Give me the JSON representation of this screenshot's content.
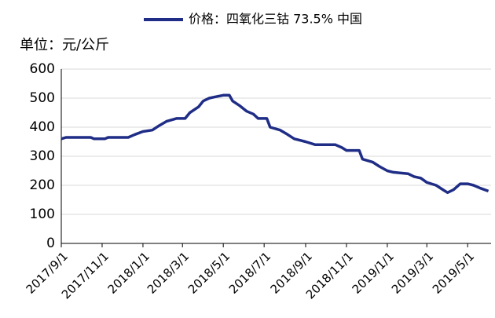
{
  "chart_data": {
    "type": "line",
    "legend_label": "价格：四氧化三钴 73.5% 中国",
    "unit_label": "单位：元/公斤",
    "grid": true,
    "ylim": [
      0,
      600
    ],
    "yticks": [
      0,
      100,
      200,
      300,
      400,
      500,
      600
    ],
    "xlim": [
      "2017-09-01",
      "2019-06-05"
    ],
    "xticks": [
      {
        "value": "2017-09-01",
        "label": "2017/9/1"
      },
      {
        "value": "2017-11-01",
        "label": "2017/11/1"
      },
      {
        "value": "2018-01-01",
        "label": "2018/1/1"
      },
      {
        "value": "2018-03-01",
        "label": "2018/3/1"
      },
      {
        "value": "2018-05-01",
        "label": "2018/5/1"
      },
      {
        "value": "2018-07-01",
        "label": "2018/7/1"
      },
      {
        "value": "2018-09-01",
        "label": "2018/9/1"
      },
      {
        "value": "2018-11-01",
        "label": "2018/11/1"
      },
      {
        "value": "2019-01-01",
        "label": "2019/1/1"
      },
      {
        "value": "2019-03-01",
        "label": "2019/3/1"
      },
      {
        "value": "2019-05-01",
        "label": "2019/5/1"
      }
    ],
    "x": [
      "2017-09-01",
      "2017-09-08",
      "2017-10-15",
      "2017-10-20",
      "2017-11-05",
      "2017-11-10",
      "2017-12-10",
      "2017-12-20",
      "2018-01-01",
      "2018-01-15",
      "2018-01-25",
      "2018-02-05",
      "2018-02-20",
      "2018-03-05",
      "2018-03-12",
      "2018-03-25",
      "2018-04-01",
      "2018-04-10",
      "2018-04-20",
      "2018-05-01",
      "2018-05-10",
      "2018-05-15",
      "2018-05-25",
      "2018-06-05",
      "2018-06-15",
      "2018-06-22",
      "2018-07-05",
      "2018-07-10",
      "2018-07-25",
      "2018-08-05",
      "2018-08-15",
      "2018-09-01",
      "2018-09-15",
      "2018-10-15",
      "2018-10-25",
      "2018-11-01",
      "2018-11-20",
      "2018-11-25",
      "2018-12-10",
      "2018-12-20",
      "2019-01-01",
      "2019-01-10",
      "2019-02-01",
      "2019-02-10",
      "2019-02-20",
      "2019-03-01",
      "2019-03-15",
      "2019-03-25",
      "2019-04-01",
      "2019-04-10",
      "2019-04-20",
      "2019-05-01",
      "2019-05-10",
      "2019-05-20",
      "2019-06-01"
    ],
    "series": [
      {
        "name": "价格：四氧化三钴 73.5% 中国",
        "color": "#1f2d86",
        "values": [
          360,
          365,
          365,
          360,
          360,
          365,
          365,
          375,
          385,
          390,
          405,
          420,
          430,
          430,
          450,
          470,
          490,
          500,
          505,
          510,
          510,
          490,
          475,
          455,
          445,
          430,
          430,
          400,
          390,
          375,
          360,
          350,
          340,
          340,
          330,
          320,
          320,
          290,
          280,
          265,
          250,
          245,
          240,
          230,
          225,
          210,
          200,
          185,
          175,
          185,
          205,
          205,
          200,
          190,
          180
        ]
      }
    ]
  }
}
